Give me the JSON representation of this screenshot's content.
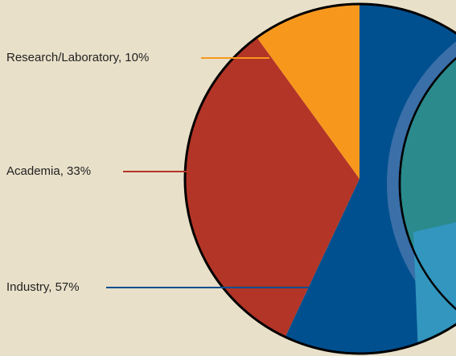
{
  "chart_data": {
    "type": "pie",
    "values": [
      57,
      33,
      10
    ],
    "value_labels": [
      "Industry, 57%",
      "Academia, 33%",
      "Research/Laboratory, 10%"
    ],
    "colors": [
      "#00508f",
      "#b33527",
      "#f7981d"
    ]
  }
}
